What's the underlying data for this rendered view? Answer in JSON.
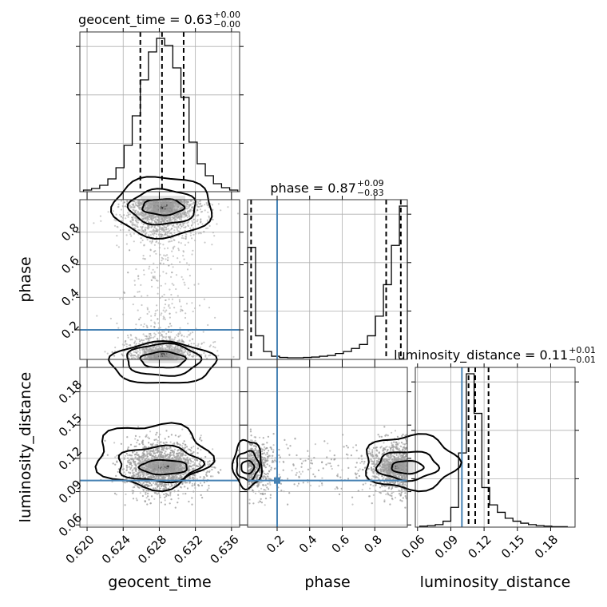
{
  "chart_data": {
    "type": "corner",
    "parameters": [
      "geocent_time",
      "phase",
      "luminosity_distance"
    ],
    "titles": [
      {
        "label": "geocent_time = 0.63",
        "plus": "+0.00",
        "minus": "−0.00"
      },
      {
        "label": "phase = 0.87",
        "plus": "+0.09",
        "minus": "−0.83"
      },
      {
        "label": "luminosity_distance = 0.11",
        "plus": "+0.01",
        "minus": "−0.01"
      }
    ],
    "axis_labels": {
      "geocent_time": "geocent_time",
      "phase": "phase",
      "luminosity_distance": "luminosity_distance"
    },
    "ranges": {
      "geocent_time": [
        0.6192,
        0.6369
      ],
      "phase": [
        0.0185,
        1.0
      ],
      "luminosity_distance": [
        0.058,
        0.202
      ]
    },
    "ticks": {
      "geocent_time": [
        "0.620",
        "0.624",
        "0.628",
        "0.632",
        "0.636"
      ],
      "phase_x": [
        "0.2",
        "0.4",
        "0.6",
        "0.8"
      ],
      "phase_y": [
        "0.2",
        "0.4",
        "0.6",
        "0.8"
      ],
      "luminosity_distance": [
        "0.06",
        "0.09",
        "0.12",
        "0.15",
        "0.18"
      ]
    },
    "truths": {
      "phase": 0.2,
      "luminosity_distance": 0.1
    },
    "quantiles": {
      "geocent_time": [
        0.6259,
        0.6283,
        0.6307
      ],
      "phase": [
        0.04,
        0.87,
        0.96
      ],
      "luminosity_distance": [
        0.106,
        0.112,
        0.124
      ]
    },
    "histograms": {
      "geocent_time": {
        "bins": [
          0.6196,
          0.6205,
          0.6214,
          0.6223,
          0.6232,
          0.6241,
          0.625,
          0.6259,
          0.6268,
          0.6277,
          0.6286,
          0.6295,
          0.6304,
          0.6313,
          0.6322,
          0.6331,
          0.634,
          0.6349,
          0.6358,
          0.6367
        ],
        "counts": [
          2,
          4,
          8,
          16,
          30,
          58,
          95,
          140,
          175,
          192,
          183,
          155,
          118,
          62,
          35,
          20,
          10,
          5,
          2
        ]
      },
      "phase": {
        "bins": [
          0.0185,
          0.0675,
          0.1166,
          0.1657,
          0.2148,
          0.2639,
          0.313,
          0.3621,
          0.4112,
          0.4603,
          0.5094,
          0.5585,
          0.6076,
          0.6567,
          0.7058,
          0.7549,
          0.804,
          0.8531,
          0.9022,
          0.9513,
          1.0
        ],
        "counts": [
          285,
          60,
          20,
          8,
          5,
          4,
          4,
          5,
          6,
          8,
          10,
          15,
          20,
          28,
          38,
          60,
          110,
          190,
          290,
          390
        ]
      },
      "luminosity_distance": {
        "bins": [
          0.062,
          0.069,
          0.076,
          0.083,
          0.09,
          0.097,
          0.104,
          0.111,
          0.118,
          0.125,
          0.132,
          0.139,
          0.146,
          0.153,
          0.16,
          0.167,
          0.174,
          0.181,
          0.188,
          0.195
        ],
        "counts": [
          2,
          3,
          5,
          12,
          40,
          150,
          310,
          230,
          80,
          45,
          30,
          18,
          12,
          8,
          5,
          3,
          2,
          1,
          1
        ]
      }
    },
    "grid": true
  }
}
